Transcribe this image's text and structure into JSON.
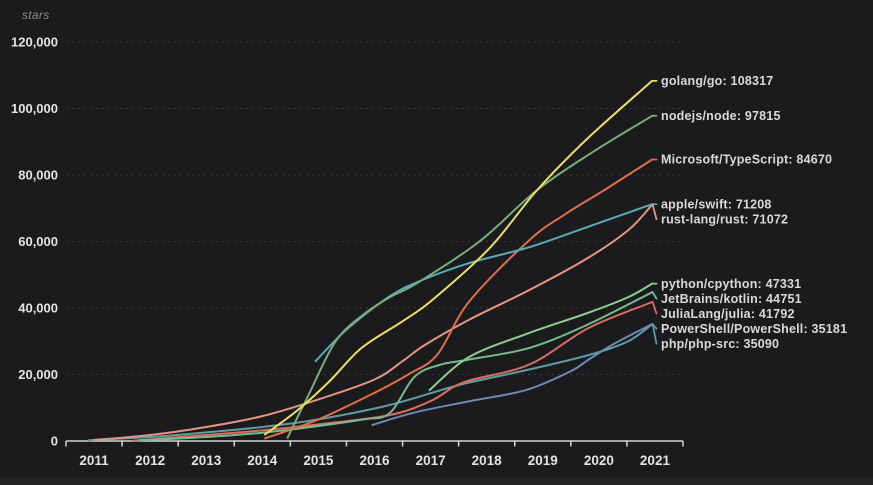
{
  "ui": {
    "background_color": "#1b1b1d",
    "bottom_strip_color": "#242427",
    "grid_color": "#3a3a3c",
    "axis_color": "#d4d4d4",
    "tick_label_color": "#e4e4e4",
    "end_label_color": "#d9d9d9",
    "unit_label_color": "#8c8c8c"
  },
  "chart_data": {
    "type": "line",
    "title": "",
    "xlabel": "",
    "ylabel": "stars",
    "x_tick_labels": [
      "2011",
      "2012",
      "2013",
      "2014",
      "2015",
      "2016",
      "2017",
      "2018",
      "2019",
      "2020",
      "2021"
    ],
    "y_tick_labels": [
      "0",
      "20,000",
      "40,000",
      "60,000",
      "80,000",
      "100,000",
      "120,000"
    ],
    "y_tick_values": [
      0,
      20000,
      40000,
      60000,
      80000,
      100000,
      120000
    ],
    "ylim": [
      0,
      120000
    ],
    "x_start_year": 2011,
    "grid": "horizontal-dashed",
    "legend_position": "end-of-line-labels",
    "series": [
      {
        "name": "php/php-src",
        "end_value": 35090,
        "label": "php/php-src: 35090",
        "color": "#5b9da3",
        "points": [
          [
            2011.4,
            200
          ],
          [
            2012.5,
            1200
          ],
          [
            2013.5,
            2600
          ],
          [
            2014.5,
            4200
          ],
          [
            2015.5,
            6500
          ],
          [
            2016.77,
            10830
          ],
          [
            2018.0,
            16800
          ],
          [
            2019.26,
            21500
          ],
          [
            2020.32,
            25860
          ],
          [
            2021.0,
            29800
          ],
          [
            2021.45,
            35090
          ]
        ]
      },
      {
        "name": "JuliaLang/julia",
        "end_value": 41792,
        "label": "JuliaLang/julia: 41792",
        "color": "#da6c60",
        "points": [
          [
            2012.2,
            100
          ],
          [
            2013.5,
            1800
          ],
          [
            2014.5,
            3200
          ],
          [
            2015.5,
            5000
          ],
          [
            2016.77,
            7800
          ],
          [
            2017.5,
            12000
          ],
          [
            2018.1,
            17700
          ],
          [
            2019.26,
            23000
          ],
          [
            2020.32,
            34000
          ],
          [
            2021.45,
            41792
          ]
        ]
      },
      {
        "name": "PowerShell/PowerShell",
        "end_value": 35181,
        "label": "PowerShell/PowerShell: 35181",
        "color": "#6e88b8",
        "points": [
          [
            2016.46,
            4800
          ],
          [
            2017.2,
            8500
          ],
          [
            2018.2,
            12000
          ],
          [
            2019.2,
            15300
          ],
          [
            2020.0,
            21000
          ],
          [
            2020.32,
            24500
          ],
          [
            2020.8,
            29500
          ],
          [
            2021.45,
            35181
          ]
        ]
      },
      {
        "name": "rust-lang/rust",
        "end_value": 71072,
        "label": "rust-lang/rust: 71072",
        "color": "#e59582",
        "points": [
          [
            2011.5,
            300
          ],
          [
            2012.5,
            1800
          ],
          [
            2013.5,
            4200
          ],
          [
            2014.5,
            7500
          ],
          [
            2015.5,
            12500
          ],
          [
            2016.5,
            18500
          ],
          [
            2017.0,
            24000
          ],
          [
            2017.4,
            28900
          ],
          [
            2018.19,
            36500
          ],
          [
            2019.26,
            45400
          ],
          [
            2020.3,
            55000
          ],
          [
            2021.03,
            63500
          ],
          [
            2021.45,
            71072
          ]
        ]
      },
      {
        "name": "JetBrains/kotlin",
        "end_value": 44751,
        "label": "JetBrains/kotlin: 44751",
        "color": "#72bd90",
        "points": [
          [
            2012.3,
            200
          ],
          [
            2013.5,
            1200
          ],
          [
            2014.5,
            2500
          ],
          [
            2015.5,
            4500
          ],
          [
            2016.3,
            6500
          ],
          [
            2016.77,
            8400
          ],
          [
            2017.21,
            19250
          ],
          [
            2017.66,
            22900
          ],
          [
            2018.19,
            24500
          ],
          [
            2019.26,
            28000
          ],
          [
            2020.3,
            35000
          ],
          [
            2021.45,
            44751
          ]
        ]
      },
      {
        "name": "python/cpython",
        "end_value": 47331,
        "label": "python/cpython: 47331",
        "color": "#90cd8c",
        "points": [
          [
            2017.48,
            15300
          ],
          [
            2018.19,
            25300
          ],
          [
            2019.26,
            32500
          ],
          [
            2020.3,
            38500
          ],
          [
            2021.03,
            43300
          ],
          [
            2021.45,
            47331
          ]
        ]
      },
      {
        "name": "Microsoft/TypeScript",
        "end_value": 84670,
        "label": "Microsoft/TypeScript: 84670",
        "color": "#e0704a",
        "points": [
          [
            2014.55,
            800
          ],
          [
            2015.5,
            6500
          ],
          [
            2016.5,
            14500
          ],
          [
            2017.1,
            20000
          ],
          [
            2017.62,
            26000
          ],
          [
            2018.19,
            42000
          ],
          [
            2019.26,
            60400
          ],
          [
            2019.88,
            68000
          ],
          [
            2020.6,
            75500
          ],
          [
            2021.45,
            84670
          ]
        ]
      },
      {
        "name": "apple/swift",
        "end_value": 71208,
        "label": "apple/swift: 71208",
        "color": "#56abb7",
        "points": [
          [
            2015.45,
            24000
          ],
          [
            2016.0,
            33500
          ],
          [
            2016.77,
            43500
          ],
          [
            2017.35,
            48400
          ],
          [
            2018.19,
            53500
          ],
          [
            2019.3,
            58500
          ],
          [
            2020.4,
            65000
          ],
          [
            2021.45,
            71208
          ]
        ]
      },
      {
        "name": "nodejs/node",
        "end_value": 97815,
        "label": "nodejs/node: 97815",
        "color": "#79ad79",
        "points": [
          [
            2014.95,
            1000
          ],
          [
            2015.3,
            13000
          ],
          [
            2015.8,
            29800
          ],
          [
            2016.3,
            38000
          ],
          [
            2016.8,
            43500
          ],
          [
            2017.26,
            47500
          ],
          [
            2018.37,
            60000
          ],
          [
            2019.4,
            75500
          ],
          [
            2020.4,
            87000
          ],
          [
            2021.45,
            97815
          ]
        ]
      },
      {
        "name": "golang/go",
        "end_value": 108317,
        "label": "golang/go: 108317",
        "color": "#ecdf64",
        "points": [
          [
            2014.55,
            2000
          ],
          [
            2015.13,
            9300
          ],
          [
            2015.7,
            18000
          ],
          [
            2016.27,
            28000
          ],
          [
            2017.0,
            36000
          ],
          [
            2017.53,
            42400
          ],
          [
            2018.55,
            58000
          ],
          [
            2019.4,
            75500
          ],
          [
            2020.3,
            91000
          ],
          [
            2021.45,
            108317
          ]
        ]
      }
    ]
  }
}
